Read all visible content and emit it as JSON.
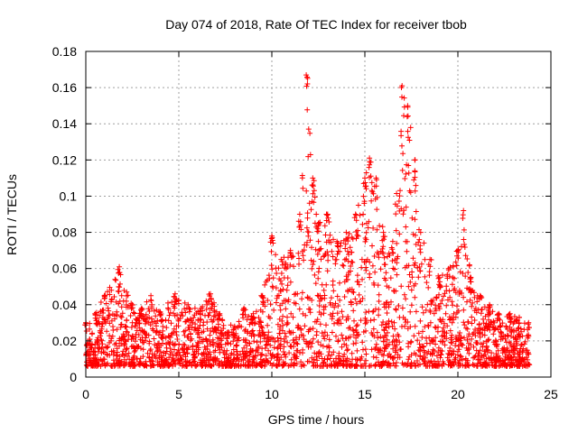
{
  "chart_data": {
    "type": "scatter",
    "title": "Day 074 of 2018, Rate Of TEC Index for receiver tbob",
    "xlabel": "GPS time / hours",
    "ylabel": "ROTI / TECUs",
    "xlim": [
      0,
      25
    ],
    "ylim": [
      0,
      0.18
    ],
    "xticks": [
      0,
      5,
      10,
      15,
      20,
      25
    ],
    "xtick_labels": [
      "0",
      "5",
      "10",
      "15",
      "20",
      "25"
    ],
    "yticks": [
      0,
      0.02,
      0.04,
      0.06,
      0.08,
      0.1,
      0.12,
      0.14,
      0.16,
      0.18
    ],
    "ytick_labels": [
      "0",
      "0.02",
      "0.04",
      "0.06",
      "0.08",
      "0.1",
      "0.12",
      "0.14",
      "0.16",
      "0.18"
    ],
    "grid": true,
    "marker": "+",
    "series_color": "#ff0000",
    "series": [
      {
        "name": "ROTI",
        "envelope_description_points": [
          {
            "x": 0.0,
            "y": 0.03
          },
          {
            "x": 0.5,
            "y": 0.035
          },
          {
            "x": 1.0,
            "y": 0.045
          },
          {
            "x": 1.8,
            "y": 0.061
          },
          {
            "x": 2.5,
            "y": 0.04
          },
          {
            "x": 3.0,
            "y": 0.038
          },
          {
            "x": 3.5,
            "y": 0.045
          },
          {
            "x": 4.0,
            "y": 0.036
          },
          {
            "x": 4.8,
            "y": 0.046
          },
          {
            "x": 5.5,
            "y": 0.04
          },
          {
            "x": 6.2,
            "y": 0.038
          },
          {
            "x": 6.7,
            "y": 0.046
          },
          {
            "x": 7.2,
            "y": 0.035
          },
          {
            "x": 8.0,
            "y": 0.028
          },
          {
            "x": 8.5,
            "y": 0.038
          },
          {
            "x": 9.0,
            "y": 0.035
          },
          {
            "x": 9.5,
            "y": 0.045
          },
          {
            "x": 10.0,
            "y": 0.078
          },
          {
            "x": 10.5,
            "y": 0.065
          },
          {
            "x": 11.0,
            "y": 0.07
          },
          {
            "x": 11.5,
            "y": 0.09
          },
          {
            "x": 11.85,
            "y": 0.167
          },
          {
            "x": 12.2,
            "y": 0.11
          },
          {
            "x": 12.5,
            "y": 0.085
          },
          {
            "x": 13.0,
            "y": 0.09
          },
          {
            "x": 13.5,
            "y": 0.075
          },
          {
            "x": 14.0,
            "y": 0.08
          },
          {
            "x": 14.5,
            "y": 0.09
          },
          {
            "x": 15.0,
            "y": 0.11
          },
          {
            "x": 15.25,
            "y": 0.121
          },
          {
            "x": 15.6,
            "y": 0.11
          },
          {
            "x": 16.0,
            "y": 0.08
          },
          {
            "x": 16.5,
            "y": 0.075
          },
          {
            "x": 17.0,
            "y": 0.161
          },
          {
            "x": 17.3,
            "y": 0.15
          },
          {
            "x": 17.7,
            "y": 0.12
          },
          {
            "x": 18.0,
            "y": 0.08
          },
          {
            "x": 18.5,
            "y": 0.065
          },
          {
            "x": 19.0,
            "y": 0.055
          },
          {
            "x": 19.5,
            "y": 0.06
          },
          {
            "x": 20.0,
            "y": 0.07
          },
          {
            "x": 20.3,
            "y": 0.092
          },
          {
            "x": 20.7,
            "y": 0.055
          },
          {
            "x": 21.2,
            "y": 0.045
          },
          {
            "x": 21.7,
            "y": 0.04
          },
          {
            "x": 22.2,
            "y": 0.035
          },
          {
            "x": 22.8,
            "y": 0.035
          },
          {
            "x": 23.3,
            "y": 0.033
          },
          {
            "x": 23.8,
            "y": 0.03
          }
        ],
        "baseline": 0.006,
        "x_range": [
          0.0,
          23.85
        ]
      }
    ]
  }
}
